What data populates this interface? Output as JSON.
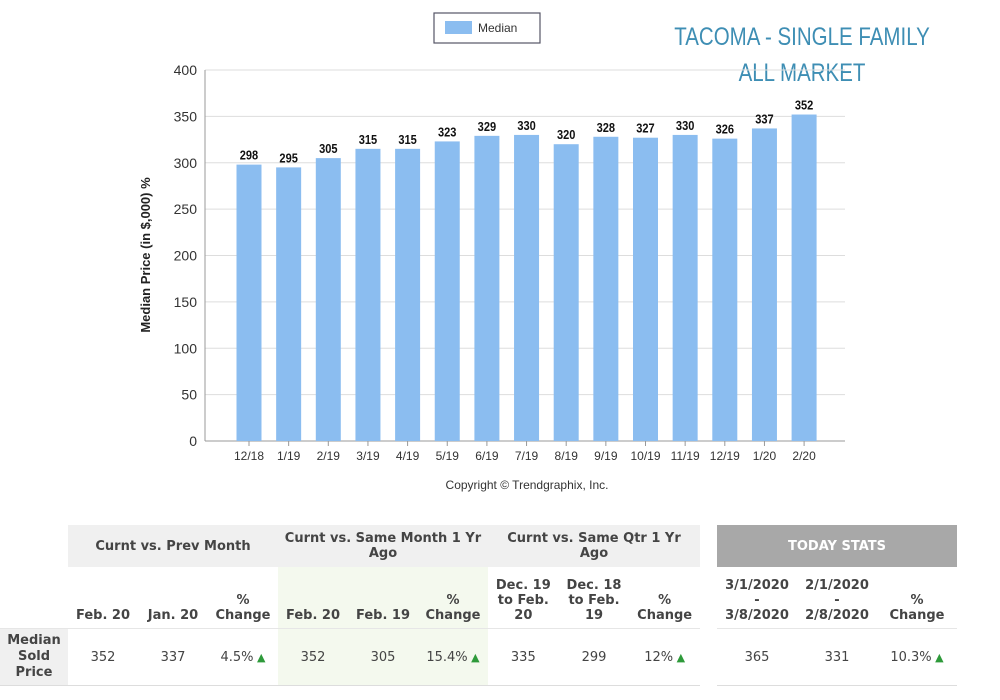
{
  "title": {
    "line1": "TACOMA - SINGLE FAMILY",
    "line2": "ALL MARKET"
  },
  "chart_data": {
    "type": "bar",
    "categories": [
      "12/18",
      "1/19",
      "2/19",
      "3/19",
      "4/19",
      "5/19",
      "6/19",
      "7/19",
      "8/19",
      "9/19",
      "10/19",
      "11/19",
      "12/19",
      "1/20",
      "2/20"
    ],
    "series": [
      {
        "name": "Median",
        "values": [
          298,
          295,
          305,
          315,
          315,
          323,
          329,
          330,
          320,
          328,
          327,
          330,
          326,
          337,
          352
        ],
        "color": "#8bbdf0"
      }
    ],
    "ylabel": "Median Price (in $,000) %",
    "xlabel": "",
    "ylim": [
      0,
      400
    ],
    "yticks": [
      0,
      50,
      100,
      150,
      200,
      250,
      300,
      350,
      400
    ],
    "grid": true,
    "legend": "top-center",
    "copyright": "Copyright © Trendgraphix, Inc."
  },
  "table": {
    "groups": [
      "Curnt vs. Prev Month",
      "Curnt vs. Same Month 1 Yr Ago",
      "Curnt vs. Same Qtr 1 Yr Ago"
    ],
    "today": "TODAY STATS",
    "cols": [
      "Feb. 20",
      "Jan. 20",
      "% Change",
      "Feb. 20",
      "Feb. 19",
      "% Change",
      "Dec. 19 to Feb. 20",
      "Dec. 18 to Feb. 19",
      "% Change"
    ],
    "today_cols": [
      "3/1/2020 - 3/8/2020",
      "2/1/2020 - 2/8/2020",
      "% Change"
    ],
    "row_label": "Median Sold Price",
    "values": [
      "352",
      "337",
      "4.5%",
      "352",
      "305",
      "15.4%",
      "335",
      "299",
      "12%"
    ],
    "today_values": [
      "365",
      "331",
      "10.3%"
    ],
    "trend_icon": "up-triangle-icon"
  }
}
